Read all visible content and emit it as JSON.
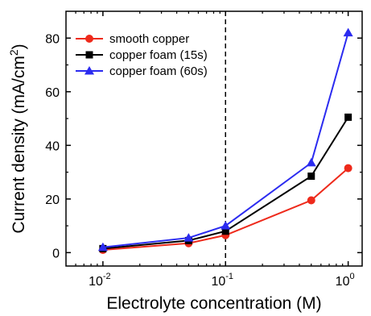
{
  "chart_data": {
    "type": "line",
    "xscale": "log",
    "xlabel": "Electrolyte concentration (M)",
    "ylabel": "Current density (mA/cm",
    "ylabel_sup": "2",
    "ylabel_close": ")",
    "xlim": [
      0.005,
      1.3
    ],
    "ylim": [
      -5,
      90
    ],
    "x_ticks": [
      0.01,
      0.1,
      1
    ],
    "x_tick_labels": [
      {
        "base": "10",
        "exp": "-2"
      },
      {
        "base": "10",
        "exp": "-1"
      },
      {
        "base": "10",
        "exp": "0"
      }
    ],
    "y_ticks": [
      0,
      20,
      40,
      60,
      80
    ],
    "y_tick_labels": [
      "0",
      "20",
      "40",
      "60",
      "80"
    ],
    "reference_line": {
      "x": 0.1,
      "style": "dashed"
    },
    "legend_position": "top-left",
    "series": [
      {
        "name": "smooth copper",
        "color": "#ee2a1b",
        "marker": "circle",
        "x": [
          0.01,
          0.05,
          0.1,
          0.5,
          1
        ],
        "y": [
          1,
          3.5,
          6.5,
          19.5,
          31.5
        ]
      },
      {
        "name": "copper foam (15s)",
        "color": "#000000",
        "marker": "square",
        "x": [
          0.01,
          0.05,
          0.1,
          0.5,
          1
        ],
        "y": [
          1.5,
          4.5,
          8,
          28.5,
          50.5
        ]
      },
      {
        "name": "copper foam (60s)",
        "color": "#2b2bf0",
        "marker": "triangle",
        "x": [
          0.01,
          0.05,
          0.1,
          0.5,
          1
        ],
        "y": [
          2,
          5.5,
          10,
          33.5,
          82
        ]
      }
    ]
  }
}
